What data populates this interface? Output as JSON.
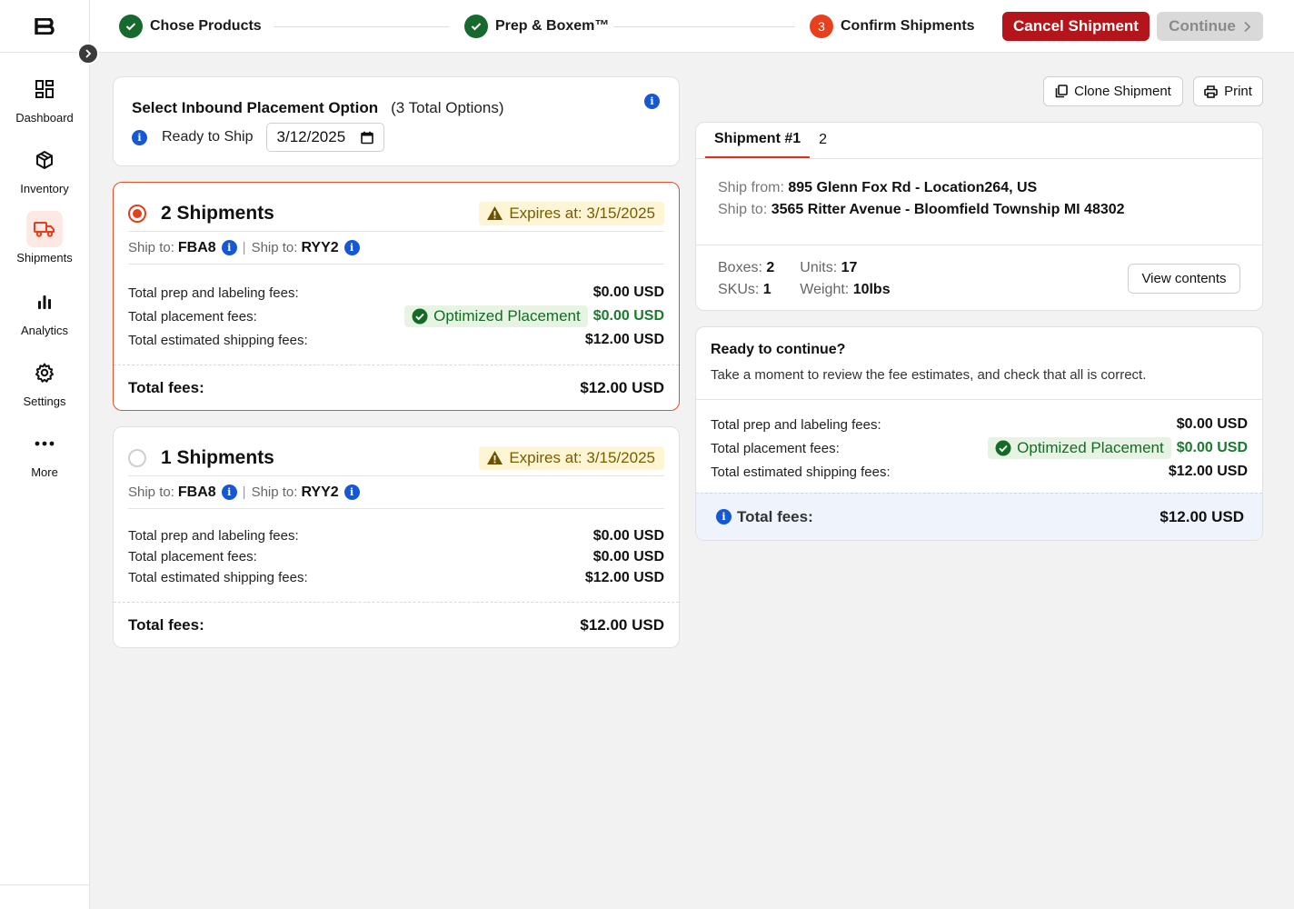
{
  "app": {
    "logo": "B"
  },
  "sidebar": {
    "items": [
      {
        "label": "Dashboard",
        "icon": "dashboard-icon"
      },
      {
        "label": "Inventory",
        "icon": "box-icon"
      },
      {
        "label": "Shipments",
        "icon": "truck-icon",
        "active": true
      },
      {
        "label": "Analytics",
        "icon": "bar-chart-icon"
      },
      {
        "label": "Settings",
        "icon": "gear-icon"
      },
      {
        "label": "More",
        "icon": "more-icon"
      }
    ]
  },
  "stepper": {
    "steps": [
      {
        "label": "Chose Products",
        "status": "done"
      },
      {
        "label": "Prep & Boxem™",
        "status": "done"
      },
      {
        "label": "Confirm Shipments",
        "status": "current",
        "number": "3"
      }
    ],
    "cancel_label": "Cancel Shipment",
    "continue_label": "Continue"
  },
  "placement": {
    "title": "Select Inbound Placement Option",
    "count": "(3 Total Options)",
    "ready_label": "Ready to Ship",
    "ready_date": "3/12/2025"
  },
  "options": [
    {
      "title": "2 Shipments",
      "selected": true,
      "expires": "Expires at: 3/15/2025",
      "ship_to_label": "Ship to:",
      "destinations": [
        "FBA8",
        "RYY2"
      ],
      "fees": [
        {
          "label": "Total prep and labeling fees:",
          "value": "$0.00 USD"
        },
        {
          "label": "Total placement fees:",
          "value": "$0.00 USD",
          "badge": "Optimized Placement"
        },
        {
          "label": "Total estimated shipping fees:",
          "value": "$12.00 USD"
        }
      ],
      "total_label": "Total fees:",
      "total_value": "$12.00 USD"
    },
    {
      "title": "1 Shipments",
      "selected": false,
      "expires": "Expires at: 3/15/2025",
      "ship_to_label": "Ship to:",
      "destinations": [
        "FBA8",
        "RYY2"
      ],
      "fees": [
        {
          "label": "Total prep and labeling fees:",
          "value": "$0.00 USD"
        },
        {
          "label": "Total placement fees:",
          "value": "$0.00 USD"
        },
        {
          "label": "Total estimated shipping fees:",
          "value": "$12.00 USD"
        }
      ],
      "total_label": "Total fees:",
      "total_value": "$12.00 USD"
    }
  ],
  "actions": {
    "clone_label": "Clone Shipment",
    "print_label": "Print"
  },
  "shipment": {
    "tabs": [
      "Shipment #1",
      "2"
    ],
    "ship_from_label": "Ship from:",
    "ship_from": "895 Glenn Fox Rd - Location264, US",
    "ship_to_label": "Ship to:",
    "ship_to": "3565 Ritter Avenue - Bloomfield Township MI 48302",
    "boxes_label": "Boxes:",
    "boxes": "2",
    "skus_label": "SKUs:",
    "skus": "1",
    "units_label": "Units:",
    "units": "17",
    "weight_label": "Weight:",
    "weight": "10lbs",
    "view_label": "View contents"
  },
  "review": {
    "title": "Ready to continue?",
    "subtitle": "Take a moment to review the fee estimates, and check that all is correct.",
    "fees": [
      {
        "label": "Total prep and labeling fees:",
        "value": "$0.00 USD"
      },
      {
        "label": "Total placement fees:",
        "value": "$0.00 USD",
        "badge": "Optimized Placement"
      },
      {
        "label": "Total estimated shipping fees:",
        "value": "$12.00 USD"
      }
    ],
    "total_label": "Total fees:",
    "total_value": "$12.00 USD"
  },
  "colors": {
    "accent": "#e0401c",
    "cancel": "#b3151b",
    "success": "#18692e",
    "info": "#1558d6"
  }
}
